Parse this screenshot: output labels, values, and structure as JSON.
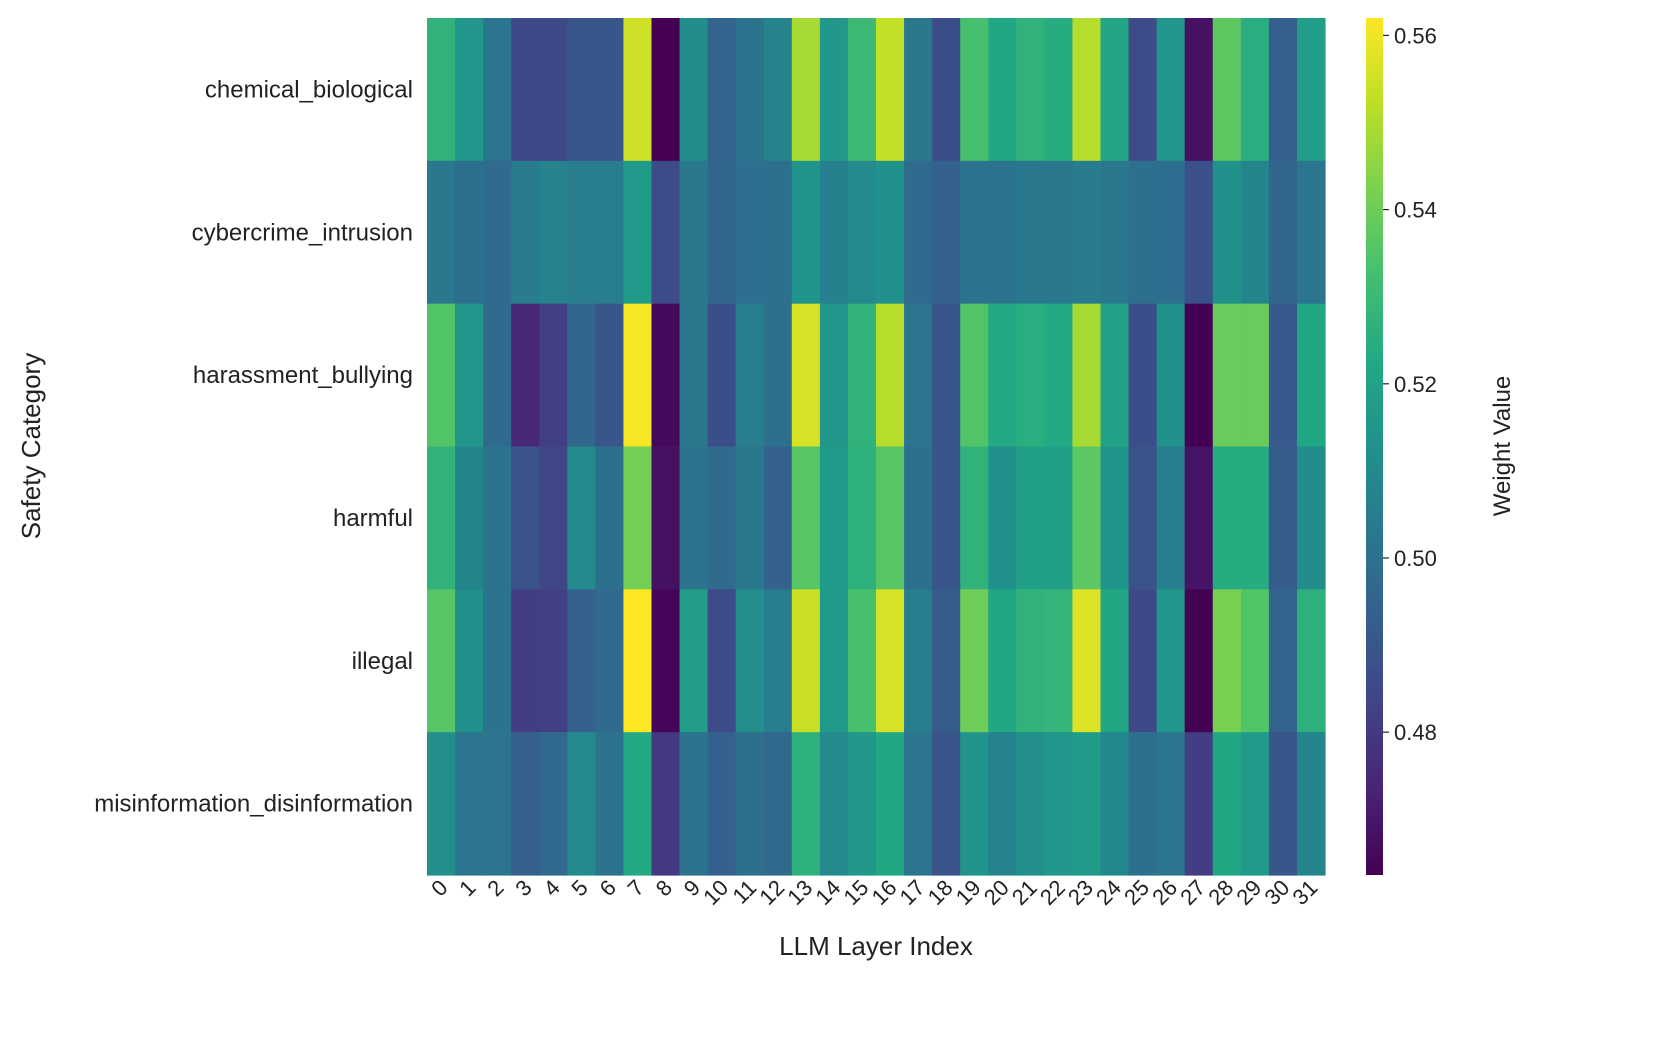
{
  "chart_data": {
    "type": "heatmap",
    "title": "",
    "xlabel": "LLM Layer Index",
    "ylabel": "Safety Category",
    "colorbar_label": "Weight Value",
    "colormap": "viridis",
    "color_range": [
      0.4636,
      0.562
    ],
    "colorbar_ticks": [
      0.48,
      0.5,
      0.52,
      0.54,
      0.56
    ],
    "colorbar_tick_labels": [
      "0.48",
      "0.50",
      "0.52",
      "0.54",
      "0.56"
    ],
    "x_categories": [
      "0",
      "1",
      "2",
      "3",
      "4",
      "5",
      "6",
      "7",
      "8",
      "9",
      "10",
      "11",
      "12",
      "13",
      "14",
      "15",
      "16",
      "17",
      "18",
      "19",
      "20",
      "21",
      "22",
      "23",
      "24",
      "25",
      "26",
      "27",
      "28",
      "29",
      "30",
      "31"
    ],
    "y_categories": [
      "chemical_biological",
      "cybercrime_intrusion",
      "harassment_bullying",
      "harmful",
      "illegal",
      "misinformation_disinformation"
    ],
    "values": [
      [
        0.527,
        0.515,
        0.502,
        0.485,
        0.485,
        0.49,
        0.49,
        0.555,
        0.463,
        0.511,
        0.495,
        0.501,
        0.507,
        0.549,
        0.516,
        0.53,
        0.553,
        0.503,
        0.487,
        0.533,
        0.522,
        0.527,
        0.524,
        0.551,
        0.521,
        0.486,
        0.515,
        0.468,
        0.537,
        0.525,
        0.493,
        0.518
      ],
      [
        0.503,
        0.5,
        0.498,
        0.504,
        0.507,
        0.505,
        0.505,
        0.517,
        0.486,
        0.503,
        0.496,
        0.499,
        0.5,
        0.514,
        0.506,
        0.51,
        0.513,
        0.498,
        0.494,
        0.501,
        0.501,
        0.503,
        0.503,
        0.504,
        0.503,
        0.5,
        0.499,
        0.488,
        0.513,
        0.508,
        0.496,
        0.502
      ],
      [
        0.535,
        0.515,
        0.498,
        0.475,
        0.482,
        0.496,
        0.49,
        0.561,
        0.466,
        0.503,
        0.487,
        0.505,
        0.5,
        0.556,
        0.515,
        0.527,
        0.551,
        0.502,
        0.49,
        0.535,
        0.523,
        0.525,
        0.523,
        0.549,
        0.52,
        0.487,
        0.513,
        0.462,
        0.539,
        0.539,
        0.491,
        0.522
      ],
      [
        0.527,
        0.508,
        0.501,
        0.489,
        0.484,
        0.51,
        0.5,
        0.541,
        0.468,
        0.501,
        0.498,
        0.503,
        0.494,
        0.536,
        0.517,
        0.526,
        0.536,
        0.5,
        0.49,
        0.527,
        0.513,
        0.519,
        0.519,
        0.537,
        0.514,
        0.489,
        0.505,
        0.469,
        0.524,
        0.524,
        0.492,
        0.511
      ],
      [
        0.536,
        0.513,
        0.501,
        0.481,
        0.482,
        0.494,
        0.498,
        0.562,
        0.465,
        0.518,
        0.486,
        0.512,
        0.505,
        0.554,
        0.517,
        0.533,
        0.556,
        0.505,
        0.492,
        0.54,
        0.522,
        0.527,
        0.528,
        0.557,
        0.522,
        0.485,
        0.515,
        0.463,
        0.542,
        0.535,
        0.495,
        0.526
      ],
      [
        0.512,
        0.502,
        0.502,
        0.493,
        0.497,
        0.51,
        0.501,
        0.523,
        0.48,
        0.501,
        0.494,
        0.5,
        0.497,
        0.526,
        0.51,
        0.516,
        0.522,
        0.502,
        0.489,
        0.514,
        0.507,
        0.512,
        0.515,
        0.517,
        0.509,
        0.5,
        0.502,
        0.481,
        0.522,
        0.517,
        0.49,
        0.508
      ]
    ]
  }
}
